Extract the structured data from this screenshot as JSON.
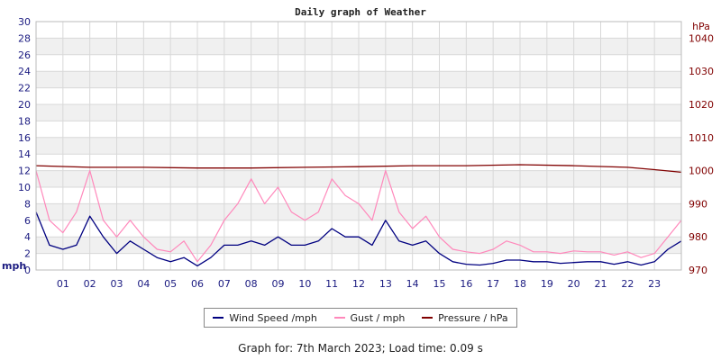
{
  "chart_data": {
    "type": "line",
    "title": "Daily graph of Weather",
    "y_left": {
      "unit": "mph",
      "range": [
        0,
        30
      ],
      "ticks": [
        "0",
        "2",
        "4",
        "6",
        "8",
        "10",
        "12",
        "14",
        "16",
        "18",
        "20",
        "22",
        "24",
        "26",
        "28",
        "30"
      ]
    },
    "y_right": {
      "unit": "hPa",
      "range": [
        970,
        1045
      ],
      "ticks": [
        "970",
        "980",
        "990",
        "1000",
        "1010",
        "1020",
        "1030",
        "1040"
      ]
    },
    "x_ticks": [
      "01",
      "02",
      "03",
      "04",
      "05",
      "06",
      "07",
      "08",
      "09",
      "10",
      "11",
      "12",
      "13",
      "14",
      "15",
      "16",
      "17",
      "18",
      "19",
      "20",
      "21",
      "22",
      "23"
    ],
    "x_range_hours": [
      0,
      24
    ],
    "grid": true,
    "legend_position": "bottom",
    "colors": {
      "wind": "#000080",
      "gust": "#ff88bb",
      "pressure": "#800000"
    },
    "series": [
      {
        "name": "Wind Speed /mph",
        "axis": "left",
        "x": [
          0,
          0.5,
          1,
          1.5,
          2,
          2.5,
          3,
          3.5,
          4,
          4.5,
          5,
          5.5,
          6,
          6.5,
          7,
          7.5,
          8,
          8.5,
          9,
          9.5,
          10,
          10.5,
          11,
          11.5,
          12,
          12.5,
          13,
          13.5,
          14,
          14.5,
          15,
          15.5,
          16,
          16.5,
          17,
          17.5,
          18,
          18.5,
          19,
          19.5,
          20,
          20.5,
          21,
          21.5,
          22,
          22.5,
          23,
          23.5,
          24
        ],
        "values": [
          7,
          3,
          2.5,
          3,
          6.5,
          4,
          2,
          3.5,
          2.5,
          1.5,
          1,
          1.5,
          0.5,
          1.5,
          3,
          3,
          3.5,
          3,
          4,
          3,
          3,
          3.5,
          5,
          4,
          4,
          3,
          6,
          3.5,
          3,
          3.5,
          2,
          1,
          0.7,
          0.6,
          0.8,
          1.2,
          1.2,
          1,
          1,
          0.8,
          0.9,
          1,
          1,
          0.7,
          1,
          0.6,
          1,
          2.5,
          3.5
        ]
      },
      {
        "name": "Gust / mph",
        "axis": "left",
        "x": [
          0,
          0.5,
          1,
          1.5,
          2,
          2.5,
          3,
          3.5,
          4,
          4.5,
          5,
          5.5,
          6,
          6.5,
          7,
          7.5,
          8,
          8.5,
          9,
          9.5,
          10,
          10.5,
          11,
          11.5,
          12,
          12.5,
          13,
          13.5,
          14,
          14.5,
          15,
          15.5,
          16,
          16.5,
          17,
          17.5,
          18,
          18.5,
          19,
          19.5,
          20,
          20.5,
          21,
          21.5,
          22,
          22.5,
          23,
          23.5,
          24
        ],
        "values": [
          12,
          6,
          4.5,
          7,
          12,
          6,
          4,
          6,
          4,
          2.5,
          2.2,
          3.5,
          1,
          3,
          6,
          8,
          11,
          8,
          10,
          7,
          6,
          7,
          11,
          9,
          8,
          6,
          12,
          7,
          5,
          6.5,
          4,
          2.5,
          2.2,
          2,
          2.5,
          3.5,
          3,
          2.2,
          2.2,
          2,
          2.3,
          2.2,
          2.2,
          1.8,
          2.2,
          1.5,
          2,
          4,
          6
        ]
      },
      {
        "name": "Pressure / hPa",
        "axis": "right",
        "x": [
          0,
          2,
          4,
          6,
          8,
          10,
          12,
          14,
          16,
          18,
          20,
          22,
          23,
          24
        ],
        "values": [
          1001.5,
          1001,
          1001,
          1000.8,
          1000.8,
          1001,
          1001.2,
          1001.5,
          1001.5,
          1001.8,
          1001.5,
          1001,
          1000.3,
          999.5
        ]
      }
    ]
  },
  "legend": {
    "wind": "Wind Speed /mph",
    "gust": "Gust / mph",
    "pressure": "Pressure / hPa"
  },
  "footer": "Graph for: 7th March 2023; Load time: 0.09 s"
}
